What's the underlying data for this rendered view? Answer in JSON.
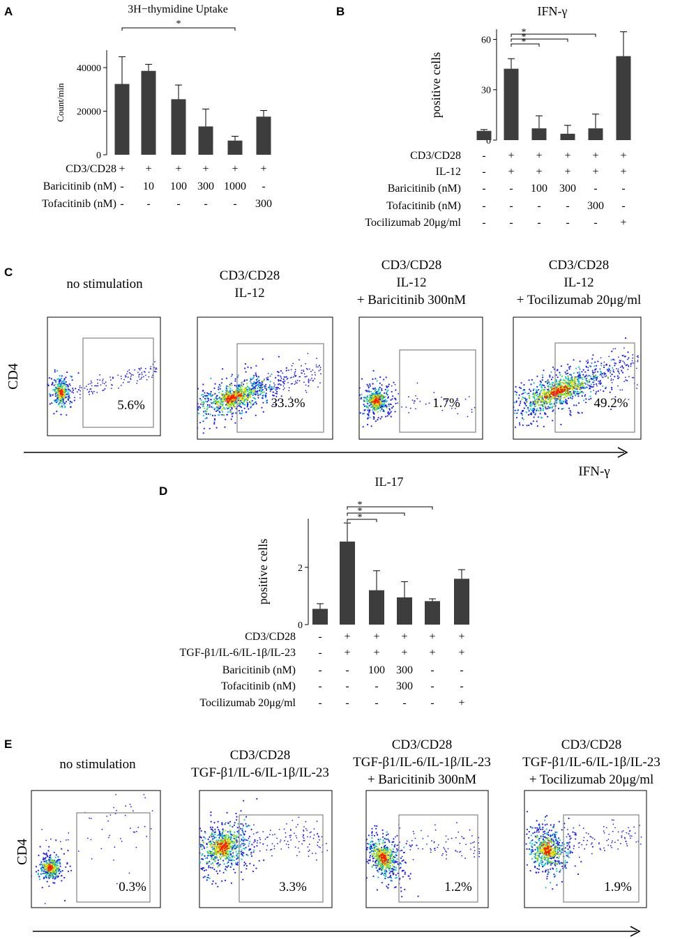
{
  "chart_data": [
    {
      "panel": "A",
      "type": "bar",
      "title": "3H−thymidine Uptake",
      "ylabel": "Count/min",
      "ylim": [
        0,
        48000
      ],
      "yticks": [
        0,
        20000,
        40000
      ],
      "ytick_labels": [
        "0",
        "20000",
        "40000"
      ],
      "values": [
        32500,
        38500,
        25500,
        13000,
        6500,
        17500
      ],
      "errors": [
        12500,
        3000,
        6500,
        8000,
        2000,
        2800
      ],
      "significance": [
        {
          "from": 0,
          "to": 4,
          "label": "*"
        }
      ],
      "conditions": [
        {
          "label": "CD3/CD28",
          "values": [
            "+",
            "+",
            "+",
            "+",
            "+",
            "+"
          ]
        },
        {
          "label": "Baricitinib (nM)",
          "values": [
            "-",
            "10",
            "100",
            "300",
            "1000",
            "-"
          ]
        },
        {
          "label": "Tofacitinib (nM)",
          "values": [
            "-",
            "-",
            "-",
            "-",
            "-",
            "300"
          ]
        }
      ]
    },
    {
      "panel": "B",
      "type": "bar",
      "title": "IFN-γ",
      "ylabel": "positive cells",
      "ylim": [
        0,
        66
      ],
      "yticks": [
        0,
        30,
        60
      ],
      "ytick_labels": [
        "0",
        "30",
        "60"
      ],
      "values": [
        5.5,
        42.5,
        7,
        3.8,
        7,
        50
      ],
      "errors": [
        0.8,
        6,
        7.5,
        5,
        8.5,
        14.5
      ],
      "significance": [
        {
          "from": 1,
          "to": 2,
          "label": "*"
        },
        {
          "from": 1,
          "to": 3,
          "label": "*"
        },
        {
          "from": 1,
          "to": 4,
          "label": "*"
        }
      ],
      "conditions": [
        {
          "label": "CD3/CD28",
          "values": [
            "-",
            "+",
            "+",
            "+",
            "+",
            "+"
          ]
        },
        {
          "label": "IL-12",
          "values": [
            "-",
            "+",
            "+",
            "+",
            "+",
            "+"
          ]
        },
        {
          "label": "Baricitinib (nM)",
          "values": [
            "-",
            "-",
            "100",
            "300",
            "-",
            "-"
          ]
        },
        {
          "label": "Tofacitinib (nM)",
          "values": [
            "-",
            "-",
            "-",
            "-",
            "300",
            "-"
          ]
        },
        {
          "label": "Tocilizumab 20μg/ml",
          "values": [
            "-",
            "-",
            "-",
            "-",
            "-",
            "+"
          ]
        }
      ]
    },
    {
      "panel": "D",
      "type": "bar",
      "title": "IL-17",
      "ylabel": "positive cells",
      "ylim": [
        0,
        3.7
      ],
      "yticks": [
        0,
        2
      ],
      "ytick_labels": [
        "0",
        "2"
      ],
      "values": [
        0.55,
        2.9,
        1.2,
        0.95,
        0.82,
        1.6
      ],
      "errors": [
        0.18,
        0.65,
        0.68,
        0.55,
        0.08,
        0.32
      ],
      "significance": [
        {
          "from": 1,
          "to": 2,
          "label": "*"
        },
        {
          "from": 1,
          "to": 3,
          "label": "*"
        },
        {
          "from": 1,
          "to": 4,
          "label": "*"
        }
      ],
      "conditions": [
        {
          "label": "CD3/CD28",
          "values": [
            "-",
            "+",
            "+",
            "+",
            "+",
            "+"
          ]
        },
        {
          "label": "TGF-β1/IL-6/IL-1β/IL-23",
          "values": [
            "-",
            "+",
            "+",
            "+",
            "+",
            "+"
          ]
        },
        {
          "label": "Baricitinib (nM)",
          "values": [
            "-",
            "-",
            "100",
            "300",
            "-",
            "-"
          ]
        },
        {
          "label": "Tofacitinib (nM)",
          "values": [
            "-",
            "-",
            "-",
            "300",
            "-",
            "-"
          ]
        },
        {
          "label": "Tocilizumab 20μg/ml",
          "values": [
            "-",
            "-",
            "-",
            "-",
            "-",
            "+"
          ]
        }
      ]
    }
  ],
  "panels": {
    "a": "A",
    "b": "B",
    "c": "C",
    "d": "D",
    "e": "E"
  },
  "flow_c": {
    "ylabel": "CD4",
    "xlabel": "IFN-γ",
    "plots": [
      {
        "title": [
          "no stimulation"
        ],
        "percent": "5.6%",
        "positive_fraction": 0.056
      },
      {
        "title": [
          "CD3/CD28",
          "IL-12"
        ],
        "percent": "33.3%",
        "positive_fraction": 0.333
      },
      {
        "title": [
          "CD3/CD28",
          "IL-12",
          "+ Baricitinib 300nM"
        ],
        "percent": "1.7%",
        "positive_fraction": 0.017
      },
      {
        "title": [
          "CD3/CD28",
          "IL-12",
          "+ Tocilizumab 20μg/ml"
        ],
        "percent": "49.2%",
        "positive_fraction": 0.492
      }
    ]
  },
  "flow_e": {
    "ylabel": "CD4",
    "plots": [
      {
        "title": [
          "no stimulation"
        ],
        "percent": "0.3%",
        "positive_fraction": 0.003
      },
      {
        "title": [
          "CD3/CD28",
          "TGF-β1/IL-6/IL-1β/IL-23"
        ],
        "percent": "3.3%",
        "positive_fraction": 0.033
      },
      {
        "title": [
          "CD3/CD28",
          "TGF-β1/IL-6/IL-1β/IL-23",
          "+ Baricitinib 300nM"
        ],
        "percent": "1.2%",
        "positive_fraction": 0.012
      },
      {
        "title": [
          "CD3/CD28",
          "TGF-β1/IL-6/IL-1β/IL-23",
          "+ Tocilizumab 20μg/ml"
        ],
        "percent": "1.9%",
        "positive_fraction": 0.019
      }
    ]
  },
  "colors": {
    "bar": "#3d3d3d",
    "axis": "#000000",
    "gate": "#8c8c8c",
    "density_low": "#1a1aff",
    "density_mid": "#00c8c8",
    "density_high_1": "#8ee000",
    "density_high_2": "#ffdc00",
    "density_peak": "#ff1a00"
  }
}
